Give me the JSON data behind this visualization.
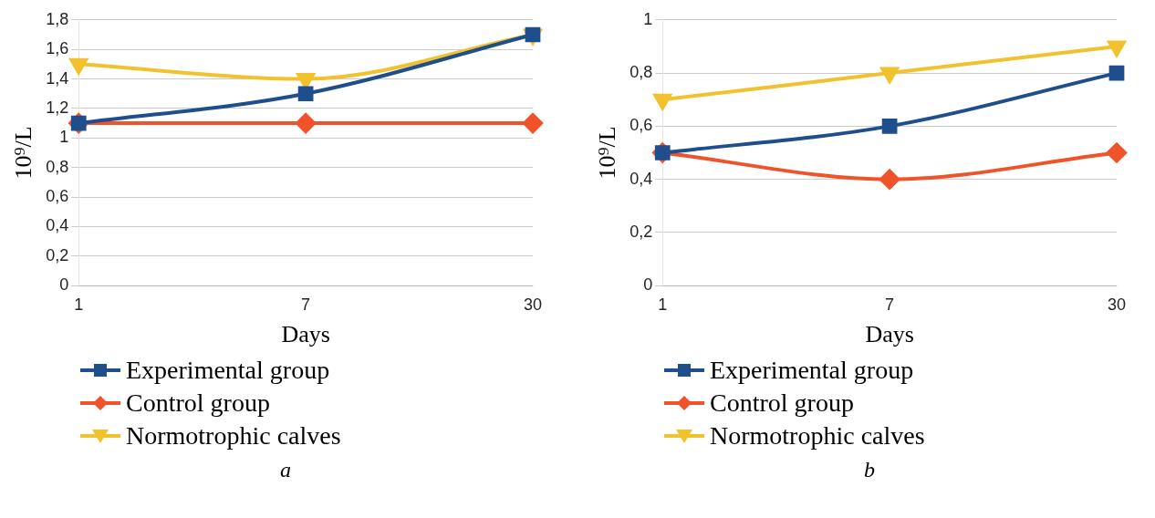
{
  "chart_data": [
    {
      "type": "line",
      "xlabel": "Days",
      "ylabel": "10⁹/L",
      "categories": [
        "1",
        "7",
        "30"
      ],
      "ylim": [
        0,
        1.8
      ],
      "yticks": [
        {
          "value": 0,
          "label": "0"
        },
        {
          "value": 0.2,
          "label": "0,2"
        },
        {
          "value": 0.4,
          "label": "0,4"
        },
        {
          "value": 0.6,
          "label": "0,6"
        },
        {
          "value": 0.8,
          "label": "0,8"
        },
        {
          "value": 1,
          "label": "1"
        },
        {
          "value": 1.2,
          "label": "1,2"
        },
        {
          "value": 1.4,
          "label": "1,4"
        },
        {
          "value": 1.6,
          "label": "1,6"
        },
        {
          "value": 1.8,
          "label": "1,8"
        }
      ],
      "grid": "y",
      "legend": "bottom",
      "annotations": [
        "a"
      ],
      "series": [
        {
          "name": "Experimental group",
          "color": "#1f4e8c",
          "marker": "square",
          "values": [
            1.1,
            1.3,
            1.7
          ]
        },
        {
          "name": "Control group",
          "color": "#f0532a",
          "marker": "diamond",
          "values": [
            1.1,
            1.1,
            1.1
          ]
        },
        {
          "name": "Normotrophic calves",
          "color": "#f2c12e",
          "marker": "triangle",
          "values": [
            1.5,
            1.4,
            1.7
          ]
        }
      ]
    },
    {
      "type": "line",
      "xlabel": "Days",
      "ylabel": "10⁹/L",
      "categories": [
        "1",
        "7",
        "30"
      ],
      "ylim": [
        0,
        1
      ],
      "yticks": [
        {
          "value": 0,
          "label": "0"
        },
        {
          "value": 0.2,
          "label": "0,2"
        },
        {
          "value": 0.4,
          "label": "0,4"
        },
        {
          "value": 0.6,
          "label": "0,6"
        },
        {
          "value": 0.8,
          "label": "0,8"
        },
        {
          "value": 1,
          "label": "1"
        }
      ],
      "grid": "y",
      "legend": "bottom",
      "annotations": [
        "b"
      ],
      "series": [
        {
          "name": "Experimental group",
          "color": "#1f4e8c",
          "marker": "square",
          "values": [
            0.5,
            0.6,
            0.8
          ]
        },
        {
          "name": "Control group",
          "color": "#f0532a",
          "marker": "diamond",
          "values": [
            0.5,
            0.4,
            0.5
          ]
        },
        {
          "name": "Normotrophic calves",
          "color": "#f2c12e",
          "marker": "triangle",
          "values": [
            0.7,
            0.8,
            0.9
          ]
        }
      ]
    }
  ]
}
